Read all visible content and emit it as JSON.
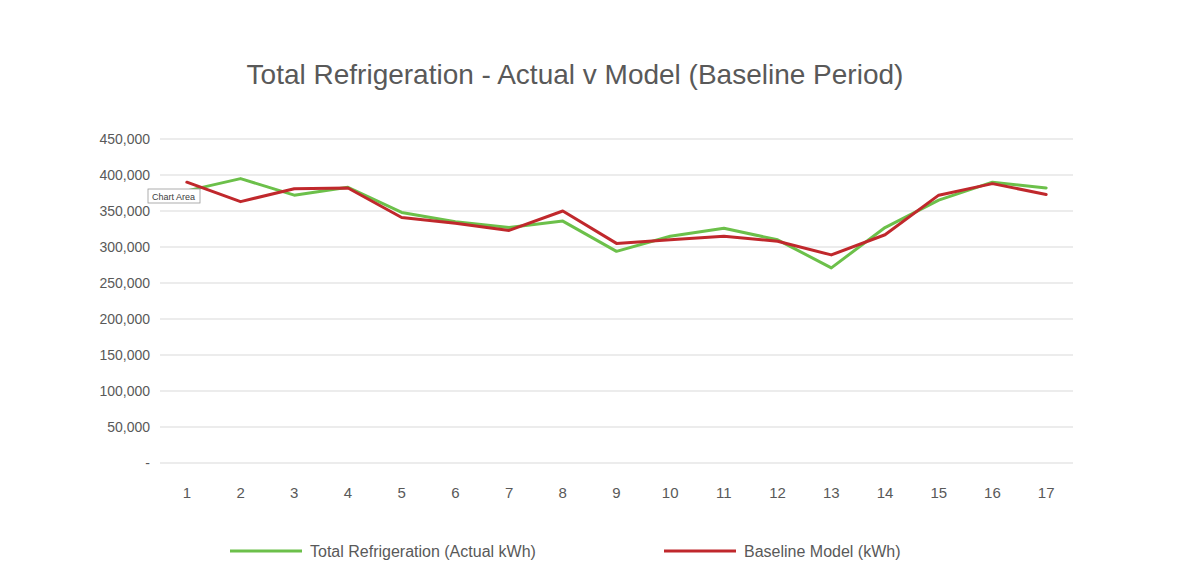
{
  "chart_data": {
    "type": "line",
    "title": "Total Refrigeration - Actual v Model (Baseline Period)",
    "annotation": "Chart Area",
    "categories": [
      "1",
      "2",
      "3",
      "4",
      "5",
      "6",
      "7",
      "8",
      "9",
      "10",
      "11",
      "12",
      "13",
      "14",
      "15",
      "16",
      "17"
    ],
    "series": [
      {
        "name": "Total Refrigeration (Actual kWh)",
        "color": "#6cc04a",
        "values": [
          378000,
          395000,
          372000,
          383000,
          348000,
          335000,
          327000,
          336000,
          294000,
          315000,
          326000,
          310000,
          271000,
          327000,
          365000,
          390000,
          382000
        ]
      },
      {
        "name": "Baseline Model (kWh)",
        "color": "#c0282c",
        "values": [
          390000,
          363000,
          381000,
          382000,
          341000,
          333000,
          323000,
          350000,
          305000,
          310000,
          315000,
          308000,
          289000,
          317000,
          372000,
          388000,
          373000
        ]
      }
    ],
    "ylim": [
      0,
      450000
    ],
    "yticks": [
      {
        "value": 0,
        "label": "-"
      },
      {
        "value": 50000,
        "label": "50,000"
      },
      {
        "value": 100000,
        "label": "100,000"
      },
      {
        "value": 150000,
        "label": "150,000"
      },
      {
        "value": 200000,
        "label": "200,000"
      },
      {
        "value": 250000,
        "label": "250,000"
      },
      {
        "value": 300000,
        "label": "300,000"
      },
      {
        "value": 350000,
        "label": "350,000"
      },
      {
        "value": 400000,
        "label": "400,000"
      },
      {
        "value": 450000,
        "label": "450,000"
      }
    ],
    "grid": true,
    "legend": "bottom"
  }
}
